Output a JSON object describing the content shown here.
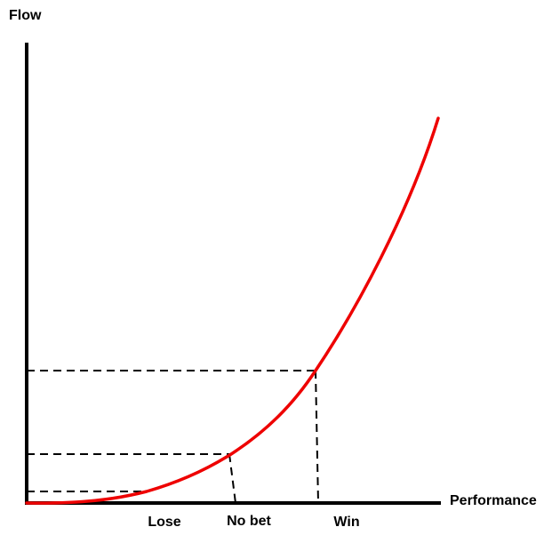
{
  "axes": {
    "y_label": "Flow",
    "x_label": "Performance"
  },
  "markers": [
    {
      "label": "Lose"
    },
    {
      "label": "No bet"
    },
    {
      "label": "Win"
    }
  ]
}
